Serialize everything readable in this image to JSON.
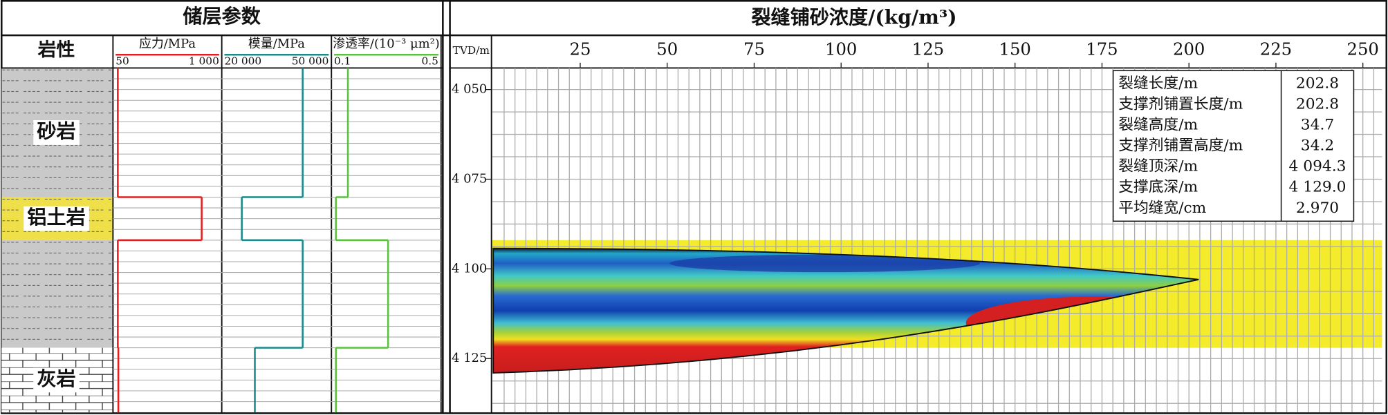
{
  "left_panel": {
    "title": "储层参数",
    "lithology_title": "岩性",
    "layers": [
      {
        "label": "砂岩",
        "top": 4044,
        "bottom": 4080,
        "color": "#c9c9c9",
        "pattern": "dash"
      },
      {
        "label": "铝土岩",
        "top": 4080,
        "bottom": 4092,
        "color": "#efe04a",
        "pattern": "dash"
      },
      {
        "label": null,
        "top": 4092,
        "bottom": 4122,
        "color": "#c9c9c9",
        "pattern": "dash"
      },
      {
        "label": "灰岩",
        "top": 4122,
        "bottom": 4140,
        "color": "#ffffff",
        "pattern": "brick"
      }
    ],
    "logs": [
      {
        "title": "应力/MPa",
        "color": "#e02020",
        "xlim": [
          50,
          1000
        ],
        "xticks": [
          50,
          {
            "value": 1000,
            "label": "1 000"
          }
        ],
        "values": [
          70,
          840,
          70,
          75
        ]
      },
      {
        "title": "模量/MPa",
        "color": "#1a8a8a",
        "xlim": [
          20000,
          50000
        ],
        "xticks": [
          {
            "value": 20000,
            "label": "20 000"
          },
          {
            "value": 50000,
            "label": "50 000"
          }
        ],
        "values": [
          42500,
          25000,
          42500,
          28750
        ]
      },
      {
        "title": "渗透率/(10⁻³ μm²)",
        "color": "#5cc040",
        "xlim": [
          0.1,
          0.5
        ],
        "xticks": [
          0.1,
          0.5
        ],
        "values": [
          0.153,
          0.107,
          0.307,
          0.107
        ]
      }
    ]
  },
  "chart_data": {
    "type": "fracture-profile",
    "title": "裂缝铺砂浓度/(kg/m³)",
    "y_label": "TVD/m",
    "xlim": [
      0,
      255.5
    ],
    "xticks": [
      25,
      50,
      75,
      100,
      125,
      150,
      175,
      200,
      225,
      250
    ],
    "ylim": [
      4044,
      4140
    ],
    "yticks": [
      {
        "value": 4050,
        "label": "4 050"
      },
      {
        "value": 4075,
        "label": "4 075"
      },
      {
        "value": 4100,
        "label": "4 100"
      },
      {
        "value": 4125,
        "label": "4 125"
      }
    ],
    "grid": true,
    "pay_zone_color": "#f4ec2a",
    "fracture": {
      "length": 202.8,
      "top": 4094.3,
      "bottom": 4129.0
    }
  },
  "table": {
    "rows": [
      [
        "裂缝长度/m",
        "202.8"
      ],
      [
        "支撑剂铺置长度/m",
        "202.8"
      ],
      [
        "裂缝高度/m",
        "34.7"
      ],
      [
        "支撑剂铺置高度/m",
        "34.2"
      ],
      [
        "裂缝顶深/m",
        "4 094.3"
      ],
      [
        "支撑底深/m",
        "4 129.0"
      ],
      [
        "平均缝宽/cm",
        "2.970"
      ]
    ]
  }
}
